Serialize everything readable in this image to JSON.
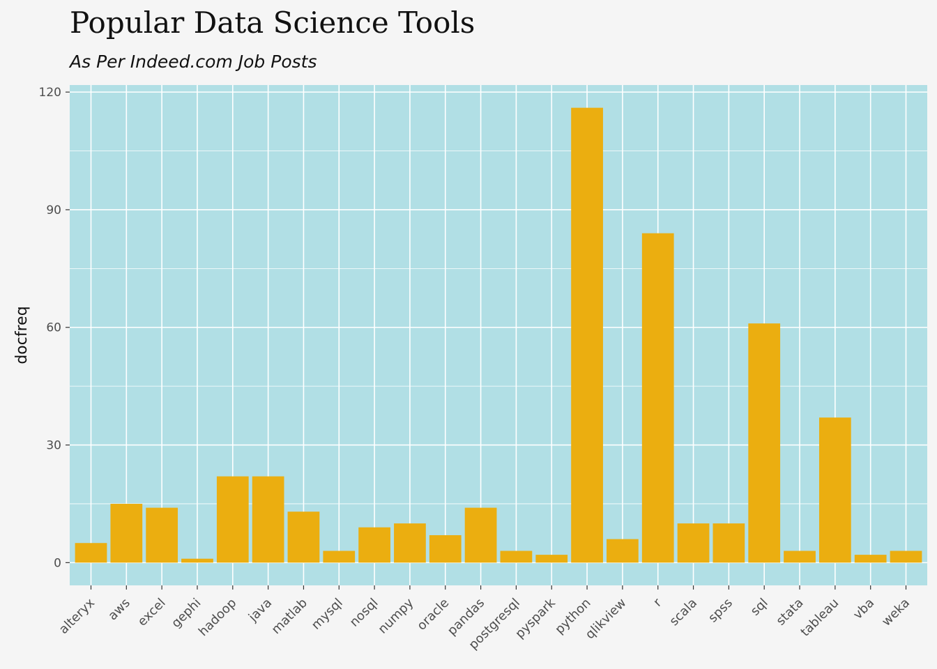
{
  "chart_data": {
    "type": "bar",
    "title": "Popular Data Science Tools",
    "subtitle": "As Per Indeed.com Job Posts",
    "xlabel": "",
    "ylabel": "docfreq",
    "categories": [
      "alteryx",
      "aws",
      "excel",
      "gephi",
      "hadoop",
      "java",
      "matlab",
      "mysql",
      "nosql",
      "numpy",
      "oracle",
      "pandas",
      "postgresql",
      "pyspark",
      "python",
      "qlikview",
      "r",
      "scala",
      "spss",
      "sql",
      "stata",
      "tableau",
      "vba",
      "weka"
    ],
    "values": [
      5,
      15,
      14,
      1,
      22,
      22,
      13,
      3,
      9,
      10,
      7,
      14,
      3,
      2,
      116,
      6,
      84,
      10,
      10,
      61,
      3,
      37,
      2,
      3
    ],
    "ylim": [
      -5.8,
      121.8
    ],
    "yticks": [
      0,
      30,
      60,
      90,
      120
    ],
    "grid": true,
    "colors": {
      "bar": "#ebae10",
      "panel": "#b1dfe5",
      "grid": "#ffffff",
      "background": "#f5f5f5"
    }
  }
}
